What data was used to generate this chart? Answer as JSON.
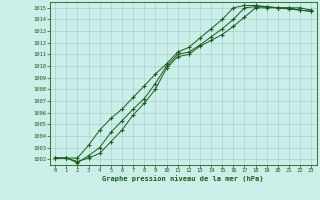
{
  "title": "Graphe pression niveau de la mer (hPa)",
  "background_color": "#cceee8",
  "line_color": "#1a5c1a",
  "grid_color": "#99cccc",
  "xlim": [
    -0.5,
    23.5
  ],
  "ylim": [
    1001.5,
    1015.5
  ],
  "yticks": [
    1002,
    1003,
    1004,
    1005,
    1006,
    1007,
    1008,
    1009,
    1010,
    1011,
    1012,
    1013,
    1014,
    1015
  ],
  "xticks": [
    0,
    1,
    2,
    3,
    4,
    5,
    6,
    7,
    8,
    9,
    10,
    11,
    12,
    13,
    14,
    15,
    16,
    17,
    18,
    19,
    20,
    21,
    22,
    23
  ],
  "line1_x": [
    0,
    1,
    2,
    3,
    4,
    5,
    6,
    7,
    8,
    9,
    10,
    11,
    12,
    13,
    14,
    15,
    16,
    17,
    18,
    19,
    20,
    21,
    22,
    23
  ],
  "line1_y": [
    1002.1,
    1002.1,
    1001.7,
    1002.3,
    1003.0,
    1004.3,
    1005.3,
    1006.3,
    1007.2,
    1008.5,
    1010.0,
    1011.0,
    1011.2,
    1011.8,
    1012.5,
    1013.2,
    1014.0,
    1015.0,
    1015.1,
    1015.1,
    1015.0,
    1014.9,
    1014.8,
    1014.7
  ],
  "line2_x": [
    0,
    1,
    2,
    3,
    4,
    5,
    6,
    7,
    8,
    9,
    10,
    11,
    12,
    13,
    14,
    15,
    16,
    17,
    18,
    19,
    20,
    21,
    22,
    23
  ],
  "line2_y": [
    1002.1,
    1002.1,
    1001.8,
    1002.1,
    1002.5,
    1003.5,
    1004.5,
    1005.8,
    1006.8,
    1008.0,
    1009.8,
    1010.8,
    1011.0,
    1011.7,
    1012.2,
    1012.7,
    1013.4,
    1014.2,
    1015.0,
    1015.0,
    1015.0,
    1015.0,
    1014.8,
    1014.7
  ],
  "line3_x": [
    0,
    1,
    2,
    3,
    4,
    5,
    6,
    7,
    8,
    9,
    10,
    11,
    12,
    13,
    14,
    15,
    16,
    17,
    18,
    19,
    20,
    21,
    22,
    23
  ],
  "line3_y": [
    1002.1,
    1002.1,
    1002.1,
    1003.2,
    1004.5,
    1005.5,
    1006.3,
    1007.3,
    1008.3,
    1009.3,
    1010.2,
    1011.2,
    1011.6,
    1012.4,
    1013.2,
    1014.0,
    1015.0,
    1015.2,
    1015.2,
    1015.1,
    1015.0,
    1015.0,
    1015.0,
    1014.8
  ]
}
